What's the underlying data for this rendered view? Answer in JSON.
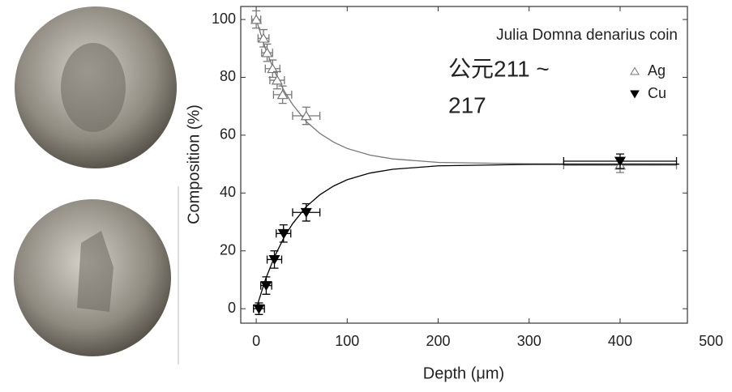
{
  "chart_data": {
    "type": "scatter",
    "title": "Julia Domna denarius coin",
    "annotation": [
      "公元211 ~",
      "217"
    ],
    "x_label": "Depth (μm)",
    "y_label": "Composition (%)",
    "xlim": [
      -17,
      474
    ],
    "ylim": [
      -5,
      104.5
    ],
    "xticks": [
      0,
      100,
      200,
      300,
      400,
      500
    ],
    "yticks": [
      0,
      20,
      40,
      60,
      80,
      100
    ],
    "legend": "upper right",
    "series": [
      {
        "name": "Ag",
        "color": "#777777",
        "marker": "open-triangle-up",
        "x": [
          0,
          8,
          12,
          18,
          23,
          29,
          55,
          400
        ],
        "values": [
          100,
          93.5,
          88.5,
          83,
          79,
          74,
          66.7,
          49.6
        ],
        "xerr": [
          5,
          6,
          6,
          8,
          8,
          10,
          15,
          62
        ],
        "yerr": [
          3,
          3,
          3,
          3,
          3,
          3,
          3,
          2.5
        ],
        "fit": {
          "x": [
            0,
            10,
            20,
            30,
            40,
            55,
            70,
            85,
            100,
            125,
            150,
            200,
            300,
            465
          ],
          "values": [
            100,
            90.0,
            82.1,
            75.7,
            70.6,
            64.7,
            60.6,
            57.6,
            55.4,
            53.1,
            51.8,
            50.6,
            50.1,
            50.0
          ]
        }
      },
      {
        "name": "Cu",
        "color": "#000000",
        "marker": "filled-triangle-down",
        "x": [
          3,
          11,
          20,
          30,
          55,
          400
        ],
        "values": [
          0,
          8,
          17,
          26,
          33.3,
          51
        ],
        "xerr": [
          6,
          6,
          8,
          8,
          15,
          62
        ],
        "yerr": [
          2,
          3,
          3,
          3,
          3,
          2.5
        ],
        "fit": {
          "x": [
            0,
            10,
            20,
            30,
            40,
            55,
            70,
            85,
            100,
            125,
            150,
            200,
            300,
            465
          ],
          "values": [
            0,
            10.0,
            17.9,
            24.3,
            29.4,
            35.3,
            39.4,
            42.4,
            44.6,
            46.9,
            48.2,
            49.4,
            49.9,
            50.0
          ]
        }
      }
    ]
  }
}
